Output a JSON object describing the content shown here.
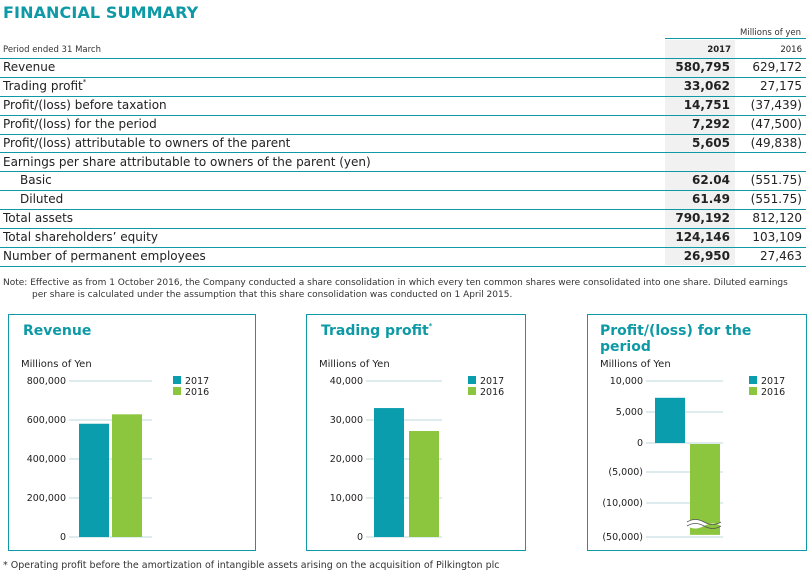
{
  "title": "FINANCIAL SUMMARY",
  "units": "Millions of yen",
  "table": {
    "period_label": "Period ended 31 March",
    "col_2017": "2017",
    "col_2016": "2016",
    "rows": [
      {
        "label": "Revenue",
        "v2017": "580,795",
        "v2016": "629,172"
      },
      {
        "label": "Trading profit",
        "sup": "*",
        "v2017": "33,062",
        "v2016": "27,175"
      },
      {
        "label": "Profit/(loss) before taxation",
        "v2017": "14,751",
        "v2016": "(37,439)"
      },
      {
        "label": "Profit/(loss) for the period",
        "v2017": "7,292",
        "v2016": "(47,500)"
      },
      {
        "label": "Profit/(loss) attributable to owners of the parent",
        "v2017": "5,605",
        "v2016": "(49,838)"
      },
      {
        "label": "Earnings per share attributable to owners of the parent (yen)",
        "v2017": "",
        "v2016": ""
      },
      {
        "label": "Basic",
        "indent": true,
        "v2017": "62.04",
        "v2016": "(551.75)"
      },
      {
        "label": "Diluted",
        "indent": true,
        "v2017": "61.49",
        "v2016": "(551.75)"
      },
      {
        "label": "Total assets",
        "v2017": "790,192",
        "v2016": "812,120"
      },
      {
        "label": "Total shareholders’ equity",
        "v2017": "124,146",
        "v2016": "103,109"
      },
      {
        "label": "Number of permanent employees",
        "v2017": "26,950",
        "v2016": "27,463"
      }
    ]
  },
  "note_line1": "Note: Effective as from 1 October 2016, the Company conducted a share consolidation in which every ten common shares were consolidated into one share. Diluted earnings",
  "note_line2": "per share is calculated under the assumption that this share consolidation was conducted on 1 April 2015.",
  "footnote": "* Operating profit before the amortization of intangible assets arising on the acquisition of Pilkington plc",
  "colors": {
    "accent": "#0d9aa6",
    "y2017": "#0a9dae",
    "y2016": "#8cc63e"
  },
  "chart_data": [
    {
      "type": "bar",
      "title": "Revenue",
      "ylabel": "Millions of Yen",
      "categories": [
        "2017",
        "2016"
      ],
      "values": [
        580795,
        629172
      ],
      "ylim": [
        0,
        800000
      ],
      "ticks": [
        "800,000",
        "600,000",
        "400,000",
        "200,000",
        "0"
      ],
      "tick_values": [
        800000,
        600000,
        400000,
        200000,
        0
      ],
      "legend": [
        "2017",
        "2016"
      ]
    },
    {
      "type": "bar",
      "title": "Trading profit",
      "title_sup": "*",
      "ylabel": "Millions of Yen",
      "categories": [
        "2017",
        "2016"
      ],
      "values": [
        33062,
        27175
      ],
      "ylim": [
        0,
        40000
      ],
      "ticks": [
        "40,000",
        "30,000",
        "20,000",
        "10,000",
        "0"
      ],
      "tick_values": [
        40000,
        30000,
        20000,
        10000,
        0
      ],
      "legend": [
        "2017",
        "2016"
      ]
    },
    {
      "type": "bar",
      "title": "Profit/(loss) for the period",
      "ylabel": "Millions of Yen",
      "categories": [
        "2017",
        "2016"
      ],
      "values": [
        7292,
        -47500
      ],
      "axis_break": true,
      "ticks": [
        "10,000",
        "5,000",
        "0",
        "(5,000)",
        "(10,000)",
        "(50,000)"
      ],
      "tick_values": [
        10000,
        5000,
        0,
        -5000,
        -10000,
        -50000
      ],
      "legend": [
        "2017",
        "2016"
      ]
    }
  ]
}
